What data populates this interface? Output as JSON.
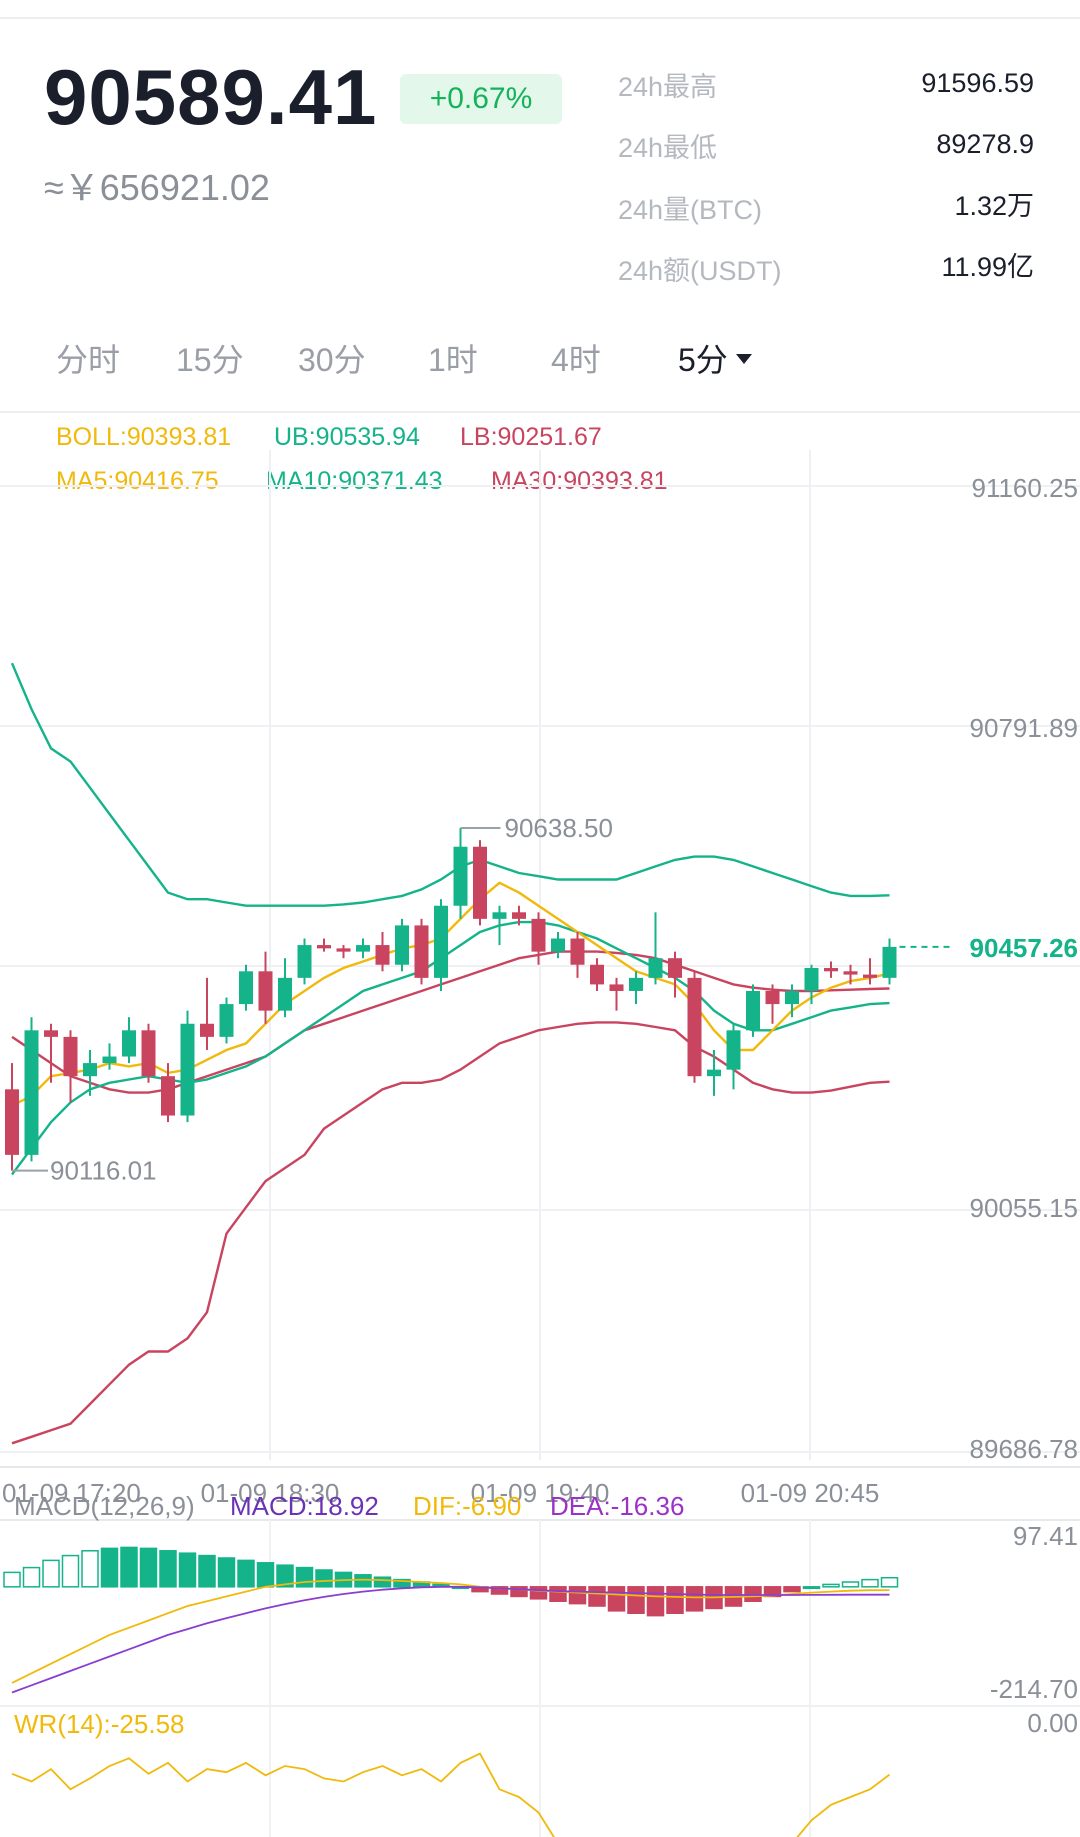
{
  "ticker": {
    "price": "90589.41",
    "change": "+0.67%",
    "cny_price": "≈￥656921.02"
  },
  "stats": [
    {
      "label": "24h最高",
      "value": "91596.59"
    },
    {
      "label": "24h最低",
      "value": "89278.9"
    },
    {
      "label": "24h量(BTC)",
      "value": "1.32万"
    },
    {
      "label": "24h额(USDT)",
      "value": "11.99亿"
    }
  ],
  "tabs": [
    {
      "label": "分时"
    },
    {
      "label": "15分"
    },
    {
      "label": "30分"
    },
    {
      "label": "1时"
    },
    {
      "label": "4时"
    },
    {
      "label": "5分",
      "active": true
    }
  ],
  "indicators": {
    "boll": "BOLL:90393.81",
    "ub": "UB:90535.94",
    "lb": "LB:90251.67",
    "ma5": "MA5:90416.75",
    "ma10": "MA10:90371.43",
    "ma30": "MA30:90393.81"
  },
  "main_chart": {
    "y_ticks": [
      "91160.25",
      "90791.89",
      "90055.15",
      "89686.78"
    ],
    "x_ticks": [
      "01-09 17:20",
      "01-09 18:30",
      "01-09 19:40",
      "01-09 20:45"
    ],
    "high_marker": "90638.50",
    "low_marker": "90116.01",
    "last_price": "90457.26"
  },
  "macd_panel": {
    "title": "MACD(12,26,9)",
    "macd": "MACD:18.92",
    "dif": "DIF:-6.90",
    "dea": "DEA:-16.36",
    "y_max": "97.41",
    "y_min": "-214.70"
  },
  "wr_panel": {
    "title": "WR(14):-25.58",
    "y_max": "0.00"
  },
  "colors": {
    "up": "#14b38a",
    "down": "#c8445f",
    "ma5": "#f0b90b",
    "change_badge_bg": "#e3f7ea",
    "change_badge_text": "#14b35a"
  },
  "chart_data": {
    "type": "candlestick",
    "interval": "5分",
    "y_range": [
      89686.78,
      91160.25
    ],
    "candles_ohlc": [
      [
        90240,
        90280,
        90116.01,
        90140
      ],
      [
        90140,
        90350,
        90130,
        90330
      ],
      [
        90330,
        90340,
        90250,
        90320
      ],
      [
        90320,
        90330,
        90220,
        90260
      ],
      [
        90260,
        90300,
        90230,
        90280
      ],
      [
        90280,
        90310,
        90270,
        90290
      ],
      [
        90290,
        90350,
        90280,
        90330
      ],
      [
        90330,
        90340,
        90250,
        90260
      ],
      [
        90260,
        90280,
        90190,
        90200
      ],
      [
        90200,
        90360,
        90190,
        90340
      ],
      [
        90340,
        90410,
        90300,
        90320
      ],
      [
        90320,
        90380,
        90310,
        90370
      ],
      [
        90370,
        90430,
        90360,
        90420
      ],
      [
        90420,
        90450,
        90340,
        90360
      ],
      [
        90360,
        90440,
        90350,
        90410
      ],
      [
        90410,
        90470,
        90400,
        90460
      ],
      [
        90460,
        90470,
        90450,
        90455
      ],
      [
        90455,
        90460,
        90440,
        90450
      ],
      [
        90450,
        90470,
        90440,
        90460
      ],
      [
        90460,
        90480,
        90420,
        90430
      ],
      [
        90430,
        90500,
        90420,
        90490
      ],
      [
        90490,
        90500,
        90400,
        90410
      ],
      [
        90410,
        90530,
        90390,
        90520
      ],
      [
        90520,
        90638.5,
        90500,
        90610
      ],
      [
        90610,
        90620,
        90490,
        90500
      ],
      [
        90500,
        90520,
        90460,
        90510
      ],
      [
        90510,
        90520,
        90490,
        90500
      ],
      [
        90500,
        90510,
        90430,
        90450
      ],
      [
        90450,
        90480,
        90440,
        90470
      ],
      [
        90470,
        90480,
        90410,
        90430
      ],
      [
        90430,
        90440,
        90390,
        90400
      ],
      [
        90400,
        90410,
        90360,
        90390
      ],
      [
        90390,
        90420,
        90370,
        90410
      ],
      [
        90410,
        90510,
        90400,
        90440
      ],
      [
        90440,
        90450,
        90380,
        90410
      ],
      [
        90410,
        90420,
        90250,
        90260
      ],
      [
        90260,
        90300,
        90230,
        90270
      ],
      [
        90270,
        90340,
        90240,
        90330
      ],
      [
        90330,
        90400,
        90320,
        90390
      ],
      [
        90390,
        90400,
        90340,
        90370
      ],
      [
        90370,
        90400,
        90350,
        90390
      ],
      [
        90390,
        90430,
        90370,
        90425
      ],
      [
        90425,
        90435,
        90410,
        90420
      ],
      [
        90420,
        90430,
        90400,
        90415
      ],
      [
        90415,
        90440,
        90400,
        90410
      ],
      [
        90410,
        90470,
        90400,
        90457.26
      ]
    ],
    "ma5": [
      90215,
      90230,
      90260,
      90265,
      90270,
      90280,
      90275,
      90280,
      90265,
      90270,
      90285,
      90300,
      90310,
      90340,
      90370,
      90390,
      90410,
      90425,
      90435,
      90445,
      90455,
      90460,
      90470,
      90500,
      90530,
      90555,
      90540,
      90520,
      90500,
      90480,
      90460,
      90440,
      90420,
      90410,
      90400,
      90370,
      90330,
      90300,
      90300,
      90330,
      90360,
      90380,
      90395,
      90405,
      90410,
      90416.75
    ],
    "ma10": [
      90110,
      90150,
      90190,
      90220,
      90240,
      90250,
      90255,
      90260,
      90255,
      90250,
      90255,
      90265,
      90275,
      90290,
      90310,
      90330,
      90350,
      90370,
      90390,
      90400,
      90410,
      90420,
      90440,
      90460,
      90480,
      90490,
      90495,
      90495,
      90490,
      90480,
      90470,
      90455,
      90440,
      90425,
      90410,
      90390,
      90360,
      90340,
      90330,
      90330,
      90340,
      90350,
      90360,
      90365,
      90370,
      90371.43
    ],
    "boll_ub": [
      90890,
      90820,
      90760,
      90740,
      90700,
      90660,
      90620,
      90580,
      90540,
      90530,
      90530,
      90525,
      90520,
      90520,
      90520,
      90520,
      90520,
      90522,
      90525,
      90530,
      90535,
      90545,
      90560,
      90580,
      90590,
      90580,
      90570,
      90565,
      90560,
      90560,
      90560,
      90560,
      90570,
      90580,
      90590,
      90595,
      90595,
      90590,
      90580,
      90570,
      90560,
      90550,
      90540,
      90535,
      90535,
      90535.94
    ],
    "boll_mid": [
      90320,
      90300,
      90280,
      90260,
      90250,
      90240,
      90235,
      90235,
      90240,
      90250,
      90260,
      90270,
      90280,
      90290,
      90310,
      90330,
      90340,
      90350,
      90360,
      90370,
      90380,
      90390,
      90400,
      90410,
      90420,
      90430,
      90440,
      90445,
      90450,
      90450,
      90450,
      90448,
      90445,
      90440,
      90430,
      90420,
      90410,
      90400,
      90395,
      90392,
      90390,
      90390,
      90391,
      90392,
      90393,
      90393.81
    ],
    "boll_lb": [
      89700,
      89710,
      89720,
      89730,
      89760,
      89790,
      89820,
      89840,
      89840,
      89860,
      89900,
      90020,
      90060,
      90100,
      90120,
      90140,
      90180,
      90200,
      90220,
      90240,
      90250,
      90250,
      90255,
      90270,
      90290,
      90310,
      90320,
      90330,
      90335,
      90340,
      90342,
      90342,
      90340,
      90335,
      90330,
      90305,
      90290,
      90270,
      90250,
      90240,
      90235,
      90235,
      90238,
      90244,
      90250,
      90251.67
    ],
    "macd_hist": [
      30,
      40,
      55,
      65,
      75,
      80,
      82,
      80,
      75,
      70,
      65,
      60,
      55,
      50,
      45,
      40,
      35,
      30,
      25,
      20,
      15,
      10,
      5,
      0,
      -10,
      -15,
      -20,
      -25,
      -30,
      -35,
      -40,
      -50,
      -55,
      -60,
      -55,
      -50,
      -45,
      -40,
      -30,
      -20,
      -10,
      0,
      5,
      10,
      15,
      18.92
    ],
    "dif": [
      -200,
      -180,
      -160,
      -140,
      -120,
      -100,
      -85,
      -70,
      -55,
      -40,
      -30,
      -20,
      -10,
      0,
      5,
      10,
      12,
      14,
      15,
      14,
      12,
      10,
      8,
      5,
      0,
      -3,
      -5,
      -8,
      -10,
      -12,
      -14,
      -16,
      -18,
      -20,
      -21,
      -22,
      -22,
      -21,
      -20,
      -18,
      -15,
      -12,
      -10,
      -8,
      -7,
      -6.9
    ],
    "dea": [
      -220,
      -205,
      -190,
      -175,
      -160,
      -145,
      -130,
      -115,
      -100,
      -88,
      -76,
      -65,
      -55,
      -45,
      -36,
      -28,
      -21,
      -15,
      -10,
      -6,
      -3,
      -1,
      0,
      0,
      -1,
      -3,
      -5,
      -7,
      -9,
      -10,
      -11,
      -12,
      -13,
      -14,
      -15,
      -16,
      -17,
      -17,
      -17,
      -17,
      -17,
      -16.8,
      -16.6,
      -16.5,
      -16.4,
      -16.36
    ],
    "wr": [
      -25,
      -30,
      -22,
      -35,
      -28,
      -20,
      -15,
      -25,
      -18,
      -30,
      -22,
      -24,
      -18,
      -26,
      -20,
      -22,
      -28,
      -30,
      -24,
      -20,
      -26,
      -22,
      -30,
      -18,
      -12,
      -35,
      -40,
      -50,
      -70,
      -80,
      -85,
      -90,
      -88,
      -82,
      -75,
      -95,
      -100,
      -98,
      -92,
      -80,
      -70,
      -55,
      -45,
      -40,
      -35,
      -25.58
    ],
    "wr_range": [
      -100,
      0
    ]
  }
}
